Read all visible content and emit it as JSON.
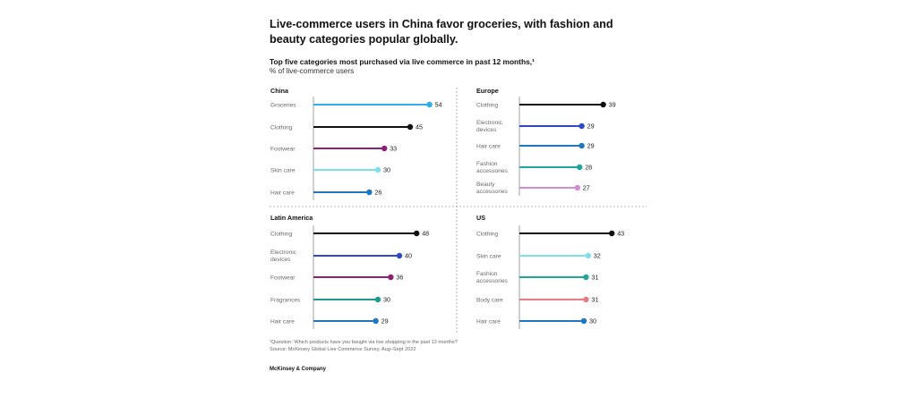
{
  "title": "Live-commerce users in China favor groceries, with fashion and beauty categories popular globally.",
  "subtitle": "Top five categories most purchased via live commerce in past 12 months,¹",
  "unit_label": "% of live-commerce users",
  "footnote_question": "¹Question: Which products have you bought via live shopping in the past 12 months?",
  "footnote_source": "Source: McKinsey Global Live Commerce Survey, Aug–Sept 2022",
  "brand": "McKinsey & Company",
  "colors": {
    "groceries": "#2eacec",
    "clothing": "#111111",
    "footwear": "#8e1f78",
    "skin_care": "#7ee0ec",
    "hair_care": "#1f78bf",
    "electronic_devices": "#2f48c9",
    "fashion_accessories": "#1fa59b",
    "beauty_accessories": "#d68ad8",
    "fragrances": "#1f9a90",
    "body_care": "#e87c82"
  },
  "chart_data": [
    {
      "type": "bar",
      "title": "China",
      "categories": [
        "Groceries",
        "Clothing",
        "Footwear",
        "Skin care",
        "Hair care"
      ],
      "values": [
        54,
        45,
        33,
        30,
        26
      ],
      "colors": [
        "#2eacec",
        "#111111",
        "#8e1f78",
        "#7ee0ec",
        "#1f78bf"
      ]
    },
    {
      "type": "bar",
      "title": "Europe",
      "categories": [
        "Clothing",
        "Electronic\ndevices",
        "Hair care",
        "Fashion\naccessories",
        "Beauty\naccessories"
      ],
      "values": [
        39,
        29,
        29,
        28,
        27
      ],
      "colors": [
        "#111111",
        "#2f48c9",
        "#1f78bf",
        "#1fa59b",
        "#d68ad8"
      ]
    },
    {
      "type": "bar",
      "title": "Latin America",
      "categories": [
        "Clothing",
        "Electronic\ndevices",
        "Footwear",
        "Fragrances",
        "Hair care"
      ],
      "values": [
        48,
        40,
        36,
        30,
        29
      ],
      "colors": [
        "#111111",
        "#2f48c9",
        "#8e1f78",
        "#1f9a90",
        "#1f78bf"
      ]
    },
    {
      "type": "bar",
      "title": "US",
      "categories": [
        "Clothing",
        "Skin care",
        "Fashion\naccessories",
        "Body care",
        "Hair care"
      ],
      "values": [
        43,
        32,
        31,
        31,
        30
      ],
      "colors": [
        "#111111",
        "#7ee0ec",
        "#1fa59b",
        "#e87c82",
        "#1f78bf"
      ]
    }
  ]
}
